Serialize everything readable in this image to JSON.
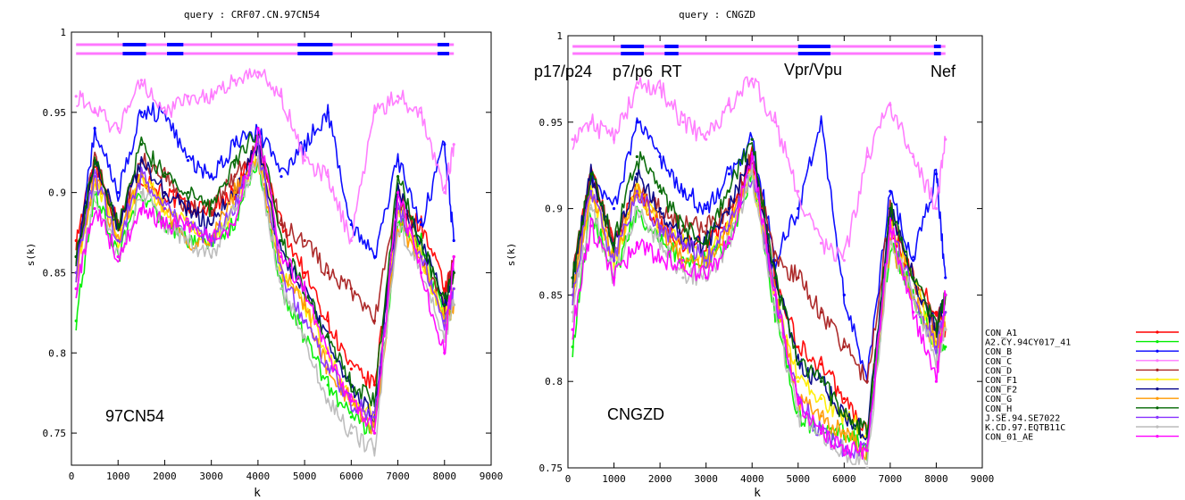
{
  "charts": [
    {
      "title": "query : CRF07.CN.97CN54",
      "xlabel": "k",
      "ylabel": "s(k)",
      "xticks": [
        0,
        1000,
        2000,
        3000,
        4000,
        5000,
        6000,
        7000,
        8000,
        9000
      ],
      "yticks": [
        0.75,
        0.8,
        0.85,
        0.9,
        0.95,
        1
      ],
      "ytick_labels": [
        "0.75",
        "0.8",
        "0.85",
        "0.9",
        "0.95",
        "1"
      ],
      "annotation": "97CN54",
      "region_labels": []
    },
    {
      "title": "query : CNGZD",
      "xlabel": "k",
      "ylabel": "s(k)",
      "xticks": [
        0,
        1000,
        2000,
        3000,
        4000,
        5000,
        6000,
        7000,
        8000,
        9000
      ],
      "yticks": [
        0.75,
        0.8,
        0.85,
        0.9,
        0.95,
        1
      ],
      "ytick_labels": [
        "0.75",
        "0.8",
        "0.85",
        "0.9",
        "0.95",
        "1"
      ],
      "annotation": "CNGZD",
      "region_labels": [
        "p17/p24",
        "p7/p6",
        "RT",
        "Vpr/Vpu",
        "Nef"
      ]
    }
  ],
  "legend": [
    {
      "name": "CON_A1",
      "color": "#ff0000"
    },
    {
      "name": "A2.CY.94CY017_41",
      "color": "#00ee00"
    },
    {
      "name": "CON_B",
      "color": "#0000ff"
    },
    {
      "name": "CON_C",
      "color": "#ff77ff"
    },
    {
      "name": "CON_D",
      "color": "#aa2222"
    },
    {
      "name": "CON_F1",
      "color": "#ffee00"
    },
    {
      "name": "CON_F2",
      "color": "#000088"
    },
    {
      "name": "CON_G",
      "color": "#ff9900"
    },
    {
      "name": "CON_H",
      "color": "#006600"
    },
    {
      "name": "J.SE.94.SE7022",
      "color": "#8833ff"
    },
    {
      "name": "K.CD.97.EQTB11C",
      "color": "#bbbbbb"
    },
    {
      "name": "CON_01_AE",
      "color": "#ff00ff"
    }
  ],
  "chart_data": [
    {
      "type": "line",
      "title": "query : CRF07.CN.97CN54",
      "xlabel": "k",
      "ylabel": "s(k)",
      "xlim": [
        0,
        9000
      ],
      "ylim": [
        0.73,
        1.0
      ],
      "grid": false,
      "legend_position": "right",
      "x": [
        100,
        500,
        1000,
        1500,
        2000,
        2500,
        3000,
        3500,
        4000,
        4500,
        5000,
        5500,
        6000,
        6500,
        7000,
        7500,
        8000,
        8200
      ],
      "bar_segments": [
        {
          "series": "CON_C",
          "from": 100,
          "to": 8200
        },
        {
          "series": "CON_B",
          "from": 1100,
          "to": 1600
        },
        {
          "series": "CON_B",
          "from": 2050,
          "to": 2400
        },
        {
          "series": "CON_B",
          "from": 4850,
          "to": 5600
        },
        {
          "series": "CON_B",
          "from": 7850,
          "to": 8100
        }
      ],
      "series": [
        {
          "name": "CON_A1",
          "values": [
            0.87,
            0.92,
            0.88,
            0.91,
            0.9,
            0.89,
            0.89,
            0.9,
            0.93,
            0.88,
            0.85,
            0.82,
            0.79,
            0.78,
            0.89,
            0.88,
            0.84,
            0.85
          ]
        },
        {
          "name": "A2.CY.94CY017_41",
          "values": [
            0.82,
            0.9,
            0.86,
            0.9,
            0.88,
            0.87,
            0.87,
            0.88,
            0.92,
            0.84,
            0.81,
            0.78,
            0.76,
            0.75,
            0.88,
            0.87,
            0.82,
            0.83
          ]
        },
        {
          "name": "CON_B",
          "values": [
            0.85,
            0.94,
            0.9,
            0.95,
            0.95,
            0.92,
            0.91,
            0.93,
            0.94,
            0.91,
            0.93,
            0.95,
            0.88,
            0.86,
            0.92,
            0.88,
            0.93,
            0.87
          ]
        },
        {
          "name": "CON_C",
          "values": [
            0.96,
            0.95,
            0.94,
            0.97,
            0.95,
            0.96,
            0.96,
            0.97,
            0.975,
            0.96,
            0.92,
            0.91,
            0.87,
            0.95,
            0.96,
            0.95,
            0.9,
            0.93
          ]
        },
        {
          "name": "CON_D",
          "values": [
            0.86,
            0.92,
            0.88,
            0.92,
            0.91,
            0.89,
            0.89,
            0.91,
            0.93,
            0.88,
            0.87,
            0.85,
            0.84,
            0.82,
            0.9,
            0.86,
            0.83,
            0.86
          ]
        },
        {
          "name": "CON_F1",
          "values": [
            0.85,
            0.91,
            0.87,
            0.91,
            0.89,
            0.88,
            0.87,
            0.89,
            0.93,
            0.85,
            0.83,
            0.8,
            0.77,
            0.76,
            0.89,
            0.86,
            0.82,
            0.84
          ]
        },
        {
          "name": "CON_F2",
          "values": [
            0.86,
            0.92,
            0.88,
            0.92,
            0.9,
            0.89,
            0.88,
            0.9,
            0.93,
            0.86,
            0.84,
            0.81,
            0.78,
            0.76,
            0.9,
            0.87,
            0.83,
            0.85
          ]
        },
        {
          "name": "CON_G",
          "values": [
            0.85,
            0.91,
            0.87,
            0.91,
            0.89,
            0.87,
            0.87,
            0.9,
            0.92,
            0.85,
            0.83,
            0.79,
            0.77,
            0.75,
            0.88,
            0.86,
            0.82,
            0.83
          ]
        },
        {
          "name": "CON_H",
          "values": [
            0.86,
            0.92,
            0.88,
            0.93,
            0.91,
            0.9,
            0.89,
            0.92,
            0.94,
            0.87,
            0.84,
            0.81,
            0.78,
            0.77,
            0.91,
            0.87,
            0.83,
            0.85
          ]
        },
        {
          "name": "J.SE.94.SE7022",
          "values": [
            0.85,
            0.91,
            0.87,
            0.91,
            0.89,
            0.88,
            0.87,
            0.89,
            0.93,
            0.85,
            0.82,
            0.79,
            0.77,
            0.76,
            0.89,
            0.86,
            0.82,
            0.84
          ]
        },
        {
          "name": "K.CD.97.EQTB11C",
          "values": [
            0.84,
            0.9,
            0.86,
            0.9,
            0.88,
            0.87,
            0.86,
            0.89,
            0.92,
            0.84,
            0.81,
            0.77,
            0.75,
            0.74,
            0.88,
            0.85,
            0.81,
            0.83
          ]
        },
        {
          "name": "CON_01_AE",
          "values": [
            0.84,
            0.89,
            0.86,
            0.89,
            0.88,
            0.88,
            0.87,
            0.88,
            0.94,
            0.86,
            0.84,
            0.8,
            0.77,
            0.75,
            0.9,
            0.85,
            0.8,
            0.86
          ]
        }
      ]
    },
    {
      "type": "line",
      "title": "query : CNGZD",
      "xlabel": "k",
      "ylabel": "s(k)",
      "xlim": [
        0,
        9000
      ],
      "ylim": [
        0.75,
        1.0
      ],
      "grid": false,
      "legend_position": "right",
      "x": [
        100,
        500,
        1000,
        1500,
        2000,
        2500,
        3000,
        3500,
        4000,
        4500,
        5000,
        5500,
        6000,
        6500,
        7000,
        7500,
        8000,
        8200
      ],
      "bar_segments": [
        {
          "series": "CON_C",
          "from": 100,
          "to": 8200
        },
        {
          "series": "CON_B",
          "from": 1150,
          "to": 1650
        },
        {
          "series": "CON_B",
          "from": 2100,
          "to": 2400
        },
        {
          "series": "CON_B",
          "from": 5000,
          "to": 5700
        },
        {
          "series": "CON_B",
          "from": 7950,
          "to": 8100
        }
      ],
      "series": [
        {
          "name": "CON_A1",
          "values": [
            0.86,
            0.92,
            0.88,
            0.91,
            0.89,
            0.88,
            0.88,
            0.89,
            0.93,
            0.86,
            0.82,
            0.81,
            0.79,
            0.77,
            0.89,
            0.86,
            0.84,
            0.83
          ]
        },
        {
          "name": "A2.CY.94CY017_41",
          "values": [
            0.82,
            0.9,
            0.86,
            0.9,
            0.88,
            0.87,
            0.87,
            0.88,
            0.92,
            0.84,
            0.78,
            0.77,
            0.77,
            0.76,
            0.88,
            0.85,
            0.82,
            0.82
          ]
        },
        {
          "name": "CON_B",
          "values": [
            0.85,
            0.92,
            0.9,
            0.95,
            0.93,
            0.91,
            0.9,
            0.92,
            0.94,
            0.87,
            0.9,
            0.95,
            0.85,
            0.8,
            0.91,
            0.87,
            0.92,
            0.86
          ]
        },
        {
          "name": "CON_C",
          "values": [
            0.94,
            0.95,
            0.94,
            0.97,
            0.97,
            0.95,
            0.94,
            0.96,
            0.975,
            0.95,
            0.91,
            0.88,
            0.87,
            0.93,
            0.96,
            0.93,
            0.9,
            0.94
          ]
        },
        {
          "name": "CON_D",
          "values": [
            0.86,
            0.92,
            0.88,
            0.91,
            0.9,
            0.89,
            0.89,
            0.9,
            0.93,
            0.87,
            0.86,
            0.84,
            0.82,
            0.8,
            0.9,
            0.86,
            0.83,
            0.85
          ]
        },
        {
          "name": "CON_F1",
          "values": [
            0.85,
            0.91,
            0.87,
            0.91,
            0.89,
            0.88,
            0.87,
            0.89,
            0.92,
            0.85,
            0.8,
            0.79,
            0.78,
            0.77,
            0.89,
            0.86,
            0.82,
            0.84
          ]
        },
        {
          "name": "CON_F2",
          "values": [
            0.86,
            0.92,
            0.88,
            0.92,
            0.9,
            0.88,
            0.88,
            0.9,
            0.93,
            0.86,
            0.81,
            0.8,
            0.78,
            0.77,
            0.9,
            0.86,
            0.83,
            0.85
          ]
        },
        {
          "name": "CON_G",
          "values": [
            0.85,
            0.91,
            0.87,
            0.91,
            0.89,
            0.87,
            0.87,
            0.89,
            0.92,
            0.85,
            0.79,
            0.78,
            0.77,
            0.76,
            0.88,
            0.85,
            0.82,
            0.83
          ]
        },
        {
          "name": "CON_H",
          "values": [
            0.86,
            0.92,
            0.88,
            0.93,
            0.91,
            0.89,
            0.88,
            0.91,
            0.94,
            0.86,
            0.81,
            0.8,
            0.78,
            0.77,
            0.9,
            0.86,
            0.83,
            0.85
          ]
        },
        {
          "name": "J.SE.94.SE7022",
          "values": [
            0.85,
            0.91,
            0.87,
            0.91,
            0.89,
            0.88,
            0.87,
            0.89,
            0.92,
            0.85,
            0.79,
            0.77,
            0.76,
            0.76,
            0.89,
            0.85,
            0.82,
            0.84
          ]
        },
        {
          "name": "K.CD.97.EQTB11C",
          "values": [
            0.84,
            0.9,
            0.86,
            0.9,
            0.88,
            0.86,
            0.86,
            0.88,
            0.92,
            0.84,
            0.78,
            0.77,
            0.76,
            0.75,
            0.88,
            0.85,
            0.81,
            0.83
          ]
        },
        {
          "name": "CON_01_AE",
          "values": [
            0.83,
            0.89,
            0.86,
            0.88,
            0.87,
            0.87,
            0.86,
            0.88,
            0.93,
            0.85,
            0.79,
            0.77,
            0.76,
            0.76,
            0.89,
            0.84,
            0.8,
            0.85
          ]
        }
      ]
    }
  ]
}
